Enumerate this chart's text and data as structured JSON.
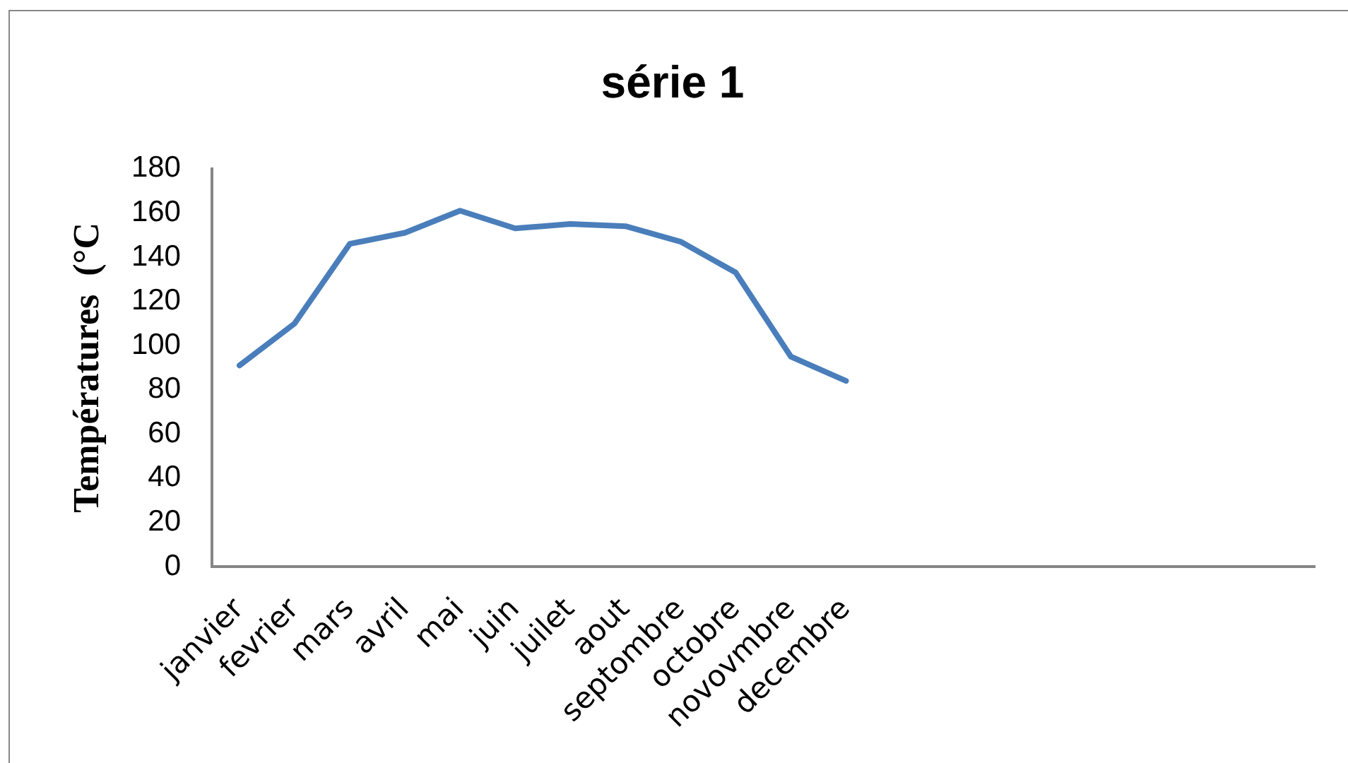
{
  "chart_data": {
    "type": "line",
    "title": "série 1",
    "ylabel": "Températures  (°C",
    "categories": [
      "janvier",
      "fevrier",
      "mars",
      "avril",
      "mai",
      "juin",
      "juilet",
      "aout",
      "septombre",
      "octobre",
      "novovmbre",
      "decembre",
      null,
      null,
      null,
      null,
      null,
      null,
      null,
      null
    ],
    "series": [
      {
        "color": "#4a7ebb",
        "values": [
          91,
          110,
          146,
          151,
          161,
          153,
          155,
          154,
          147,
          133,
          95,
          84,
          null,
          null,
          null,
          null,
          null,
          null,
          null,
          null
        ]
      }
    ],
    "ylim": [
      0,
      180
    ],
    "yticks": [
      0,
      20,
      40,
      60,
      80,
      100,
      120,
      140,
      160,
      180
    ],
    "grid": false,
    "legend": false,
    "marker": "none",
    "line_style": "solid"
  }
}
